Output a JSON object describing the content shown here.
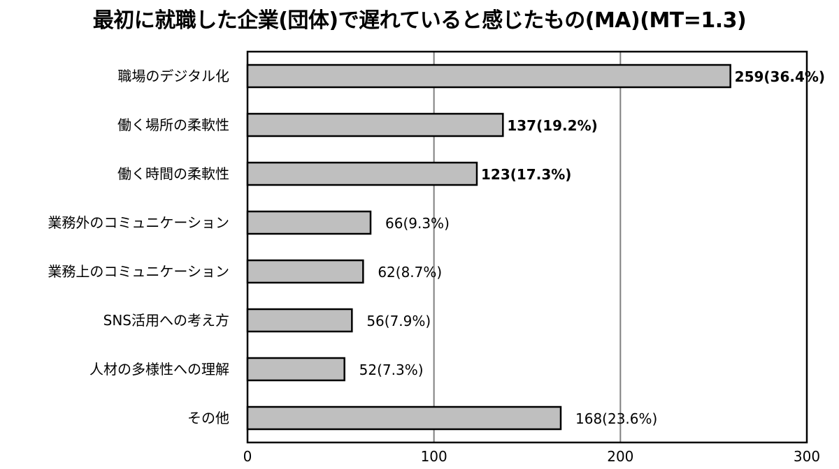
{
  "chart_data": {
    "type": "bar",
    "orientation": "horizontal",
    "title": "最初に就職した企業(団体)で遅れていると感じたもの(MA)(MT=1.3)",
    "xlabel": "",
    "ylabel": "",
    "xlim": [
      0,
      300
    ],
    "x_ticks": [
      "0",
      "100",
      "200",
      "300"
    ],
    "grid": "vertical",
    "legend": "none",
    "bar_color": "#bfbfbf",
    "bar_border_color": "#000000",
    "categories": [
      "職場のデジタル化",
      "働く場所の柔軟性",
      "働く時間の柔軟性",
      "業務外のコミュニケーション",
      "業務上のコミュニケーション",
      "SNS活用への考え方",
      "人材の多様性への理解",
      "その他"
    ],
    "values": [
      259,
      137,
      123,
      66,
      62,
      56,
      52,
      168
    ],
    "data_labels": [
      "259(36.4%)",
      "137(19.2%)",
      "123(17.3%)",
      "66(9.3%)",
      "62(8.7%)",
      "56(7.9%)",
      "52(7.3%)",
      "168(23.6%)"
    ],
    "label_bold": [
      true,
      true,
      true,
      false,
      false,
      false,
      false,
      false
    ]
  }
}
